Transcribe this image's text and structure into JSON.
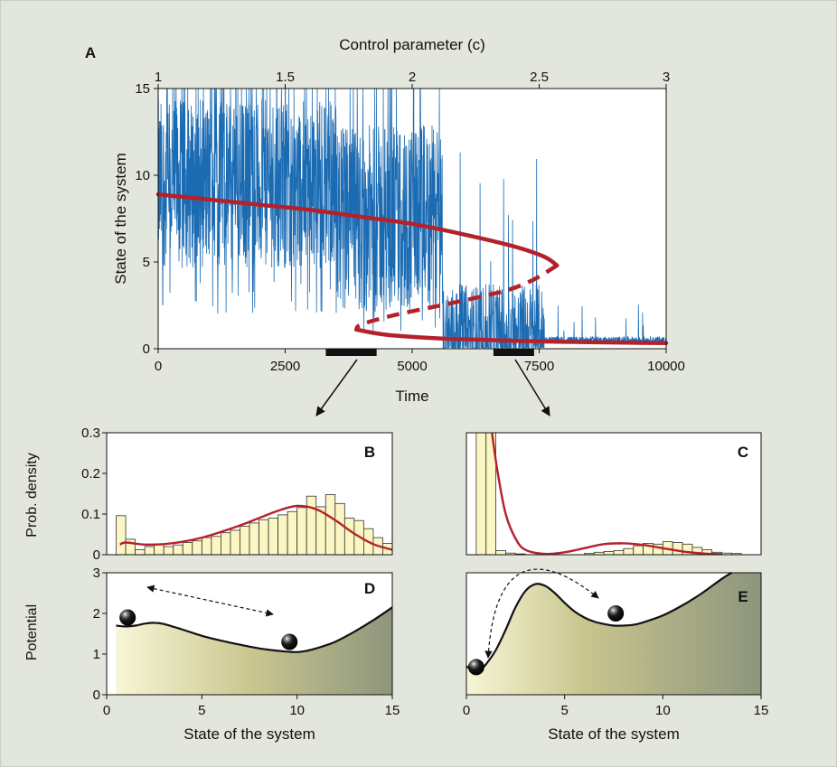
{
  "colors": {
    "background": "#e2e6dc",
    "panel_border": "#c9cec4",
    "trace": "#1b6bb3",
    "model": "#b5212b",
    "bar_fill": "#fbf6c4",
    "bar_stroke": "#333333",
    "potential_light": "#f8f6d6",
    "potential_mid": "#c9c58f",
    "potential_dark": "#8d957c"
  },
  "panel_labels": {
    "a": "A",
    "b": "B",
    "c": "C",
    "d": "D",
    "e": "E"
  },
  "chart_data": [
    {
      "id": "A",
      "type": "line",
      "top_xlabel": "Control parameter (c)",
      "top_ticks": [
        "1",
        "1.5",
        "2",
        "2.5",
        "3"
      ],
      "top_tick_values": [
        1,
        1.5,
        2,
        2.5,
        3
      ],
      "top_xlim": [
        1,
        3
      ],
      "xlabel": "Time",
      "ylabel": "State of the system",
      "xlim": [
        0,
        10000
      ],
      "ylim": [
        0,
        15
      ],
      "xticks": [
        "0",
        "2500",
        "5000",
        "7500",
        "10000"
      ],
      "xtick_values": [
        0,
        2500,
        5000,
        7500,
        10000
      ],
      "yticks": [
        "0",
        "5",
        "10",
        "15"
      ],
      "ytick_values": [
        0,
        5,
        10,
        15
      ],
      "sampling_windows": [
        [
          3300,
          4300
        ],
        [
          6600,
          7400
        ]
      ],
      "series": [
        {
          "kind": "noisy time series",
          "color": "#1b6bb3",
          "regimes": [
            {
              "from": 0,
              "to": 3500,
              "mean": 9.5,
              "low": 2,
              "high": 15
            },
            {
              "from": 3500,
              "to": 5600,
              "mean": 7.5,
              "low": 0.6,
              "high": 15
            },
            {
              "from": 5600,
              "to": 7600,
              "mean": 0.7,
              "low": 0.4,
              "high": 12.5
            },
            {
              "from": 7600,
              "to": 10000,
              "mean": 0.5,
              "low": 0.2,
              "high": 1
            }
          ]
        },
        {
          "kind": "stable upper branch",
          "color": "#b5212b",
          "x": [
            0,
            1000,
            2000,
            3000,
            4000,
            5000,
            6000,
            7000,
            7600,
            7850
          ],
          "y": [
            8.9,
            8.6,
            8.3,
            8.0,
            7.6,
            7.2,
            6.6,
            5.9,
            5.3,
            4.8
          ]
        },
        {
          "kind": "unstable branch",
          "color": "#b5212b",
          "style": "dashed",
          "x": [
            7850,
            7400,
            6900,
            6200,
            5400,
            4600,
            4000,
            3900
          ],
          "y": [
            4.8,
            4.0,
            3.4,
            2.9,
            2.4,
            1.9,
            1.4,
            1.1
          ]
        },
        {
          "kind": "stable lower branch",
          "color": "#b5212b",
          "x": [
            3900,
            4500,
            5500,
            6500,
            7500,
            8500,
            9500,
            10000
          ],
          "y": [
            1.1,
            0.8,
            0.6,
            0.5,
            0.42,
            0.38,
            0.34,
            0.33
          ]
        }
      ]
    },
    {
      "id": "B",
      "type": "bar",
      "ylabel": "Prob. density",
      "xlim": [
        0,
        15
      ],
      "ylim": [
        0,
        0.3
      ],
      "yticks": [
        "0",
        "0.1",
        "0.2",
        "0.3"
      ],
      "ytick_values": [
        0,
        0.1,
        0.2,
        0.3
      ],
      "bin_start": 0,
      "bin_width": 0.5,
      "bin_values": [
        0,
        0.096,
        0.038,
        0.012,
        0.02,
        0.024,
        0.02,
        0.024,
        0.03,
        0.034,
        0.042,
        0.045,
        0.054,
        0.06,
        0.07,
        0.078,
        0.086,
        0.09,
        0.098,
        0.106,
        0.116,
        0.144,
        0.118,
        0.148,
        0.126,
        0.09,
        0.084,
        0.064,
        0.042,
        0.028
      ],
      "fit": {
        "color": "#b5212b",
        "x": [
          0.7,
          1,
          2,
          3,
          4,
          5,
          6,
          7,
          8,
          9,
          10,
          11,
          12,
          13,
          14,
          15
        ],
        "y": [
          0.025,
          0.03,
          0.025,
          0.026,
          0.032,
          0.042,
          0.056,
          0.072,
          0.09,
          0.108,
          0.12,
          0.112,
          0.085,
          0.052,
          0.026,
          0.012
        ]
      }
    },
    {
      "id": "C",
      "type": "bar",
      "xlim": [
        0,
        15
      ],
      "ylim": [
        0,
        0.3
      ],
      "bin_start": 0,
      "bin_width": 0.5,
      "bin_values": [
        0,
        0.34,
        0.32,
        0.01,
        0.004,
        0.002,
        0,
        0,
        0,
        0,
        0,
        0,
        0.003,
        0.006,
        0.008,
        0.01,
        0.015,
        0.022,
        0.028,
        0.026,
        0.032,
        0.03,
        0.026,
        0.018,
        0.012,
        0.006,
        0.004,
        0.003,
        0,
        0
      ],
      "fit": {
        "color": "#b5212b",
        "x": [
          1.3,
          1.6,
          2,
          2.5,
          3,
          4,
          5,
          6,
          7,
          8,
          9,
          10,
          11,
          12,
          13
        ],
        "y": [
          0.3,
          0.2,
          0.1,
          0.04,
          0.012,
          0.002,
          0.006,
          0.016,
          0.026,
          0.028,
          0.024,
          0.016,
          0.008,
          0.003,
          0.001
        ]
      }
    },
    {
      "id": "D",
      "type": "area",
      "xlabel": "State of the system",
      "ylabel": "Potential",
      "xlim": [
        0,
        15
      ],
      "ylim": [
        0,
        3
      ],
      "xticks": [
        "0",
        "5",
        "10",
        "15"
      ],
      "xtick_values": [
        0,
        5,
        10,
        15
      ],
      "yticks": [
        "0",
        "1",
        "2",
        "3"
      ],
      "ytick_values": [
        0,
        1,
        2,
        3
      ],
      "x": [
        0.5,
        1,
        1.5,
        2,
        2.5,
        3,
        4,
        5,
        6,
        7,
        8,
        9,
        9.5,
        10,
        10.5,
        11,
        12,
        13,
        14,
        15
      ],
      "y": [
        1.7,
        1.68,
        1.7,
        1.75,
        1.77,
        1.74,
        1.6,
        1.45,
        1.33,
        1.23,
        1.14,
        1.08,
        1.06,
        1.05,
        1.08,
        1.14,
        1.3,
        1.55,
        1.83,
        2.15
      ],
      "balls": [
        {
          "x": 1.1,
          "y": 1.9
        },
        {
          "x": 9.6,
          "y": 1.3
        }
      ]
    },
    {
      "id": "E",
      "type": "area",
      "xlabel": "State of the system",
      "xlim": [
        0,
        15
      ],
      "ylim": [
        0,
        3
      ],
      "xticks": [
        "0",
        "5",
        "10",
        "15"
      ],
      "xtick_values": [
        0,
        5,
        10,
        15
      ],
      "x": [
        0,
        0.3,
        0.5,
        0.7,
        1,
        1.5,
        2,
        2.5,
        3,
        3.5,
        4,
        4.5,
        5,
        5.5,
        6,
        6.5,
        7,
        7.5,
        8,
        8.5,
        9,
        10,
        11,
        12,
        13,
        13.5
      ],
      "y": [
        0.7,
        0.6,
        0.55,
        0.6,
        0.75,
        1.1,
        1.6,
        2.15,
        2.55,
        2.72,
        2.68,
        2.5,
        2.26,
        2.05,
        1.9,
        1.8,
        1.74,
        1.7,
        1.7,
        1.72,
        1.78,
        1.95,
        2.2,
        2.5,
        2.85,
        3.0
      ],
      "balls": [
        {
          "x": 0.5,
          "y": 0.68
        },
        {
          "x": 7.6,
          "y": 2.0
        }
      ]
    }
  ]
}
